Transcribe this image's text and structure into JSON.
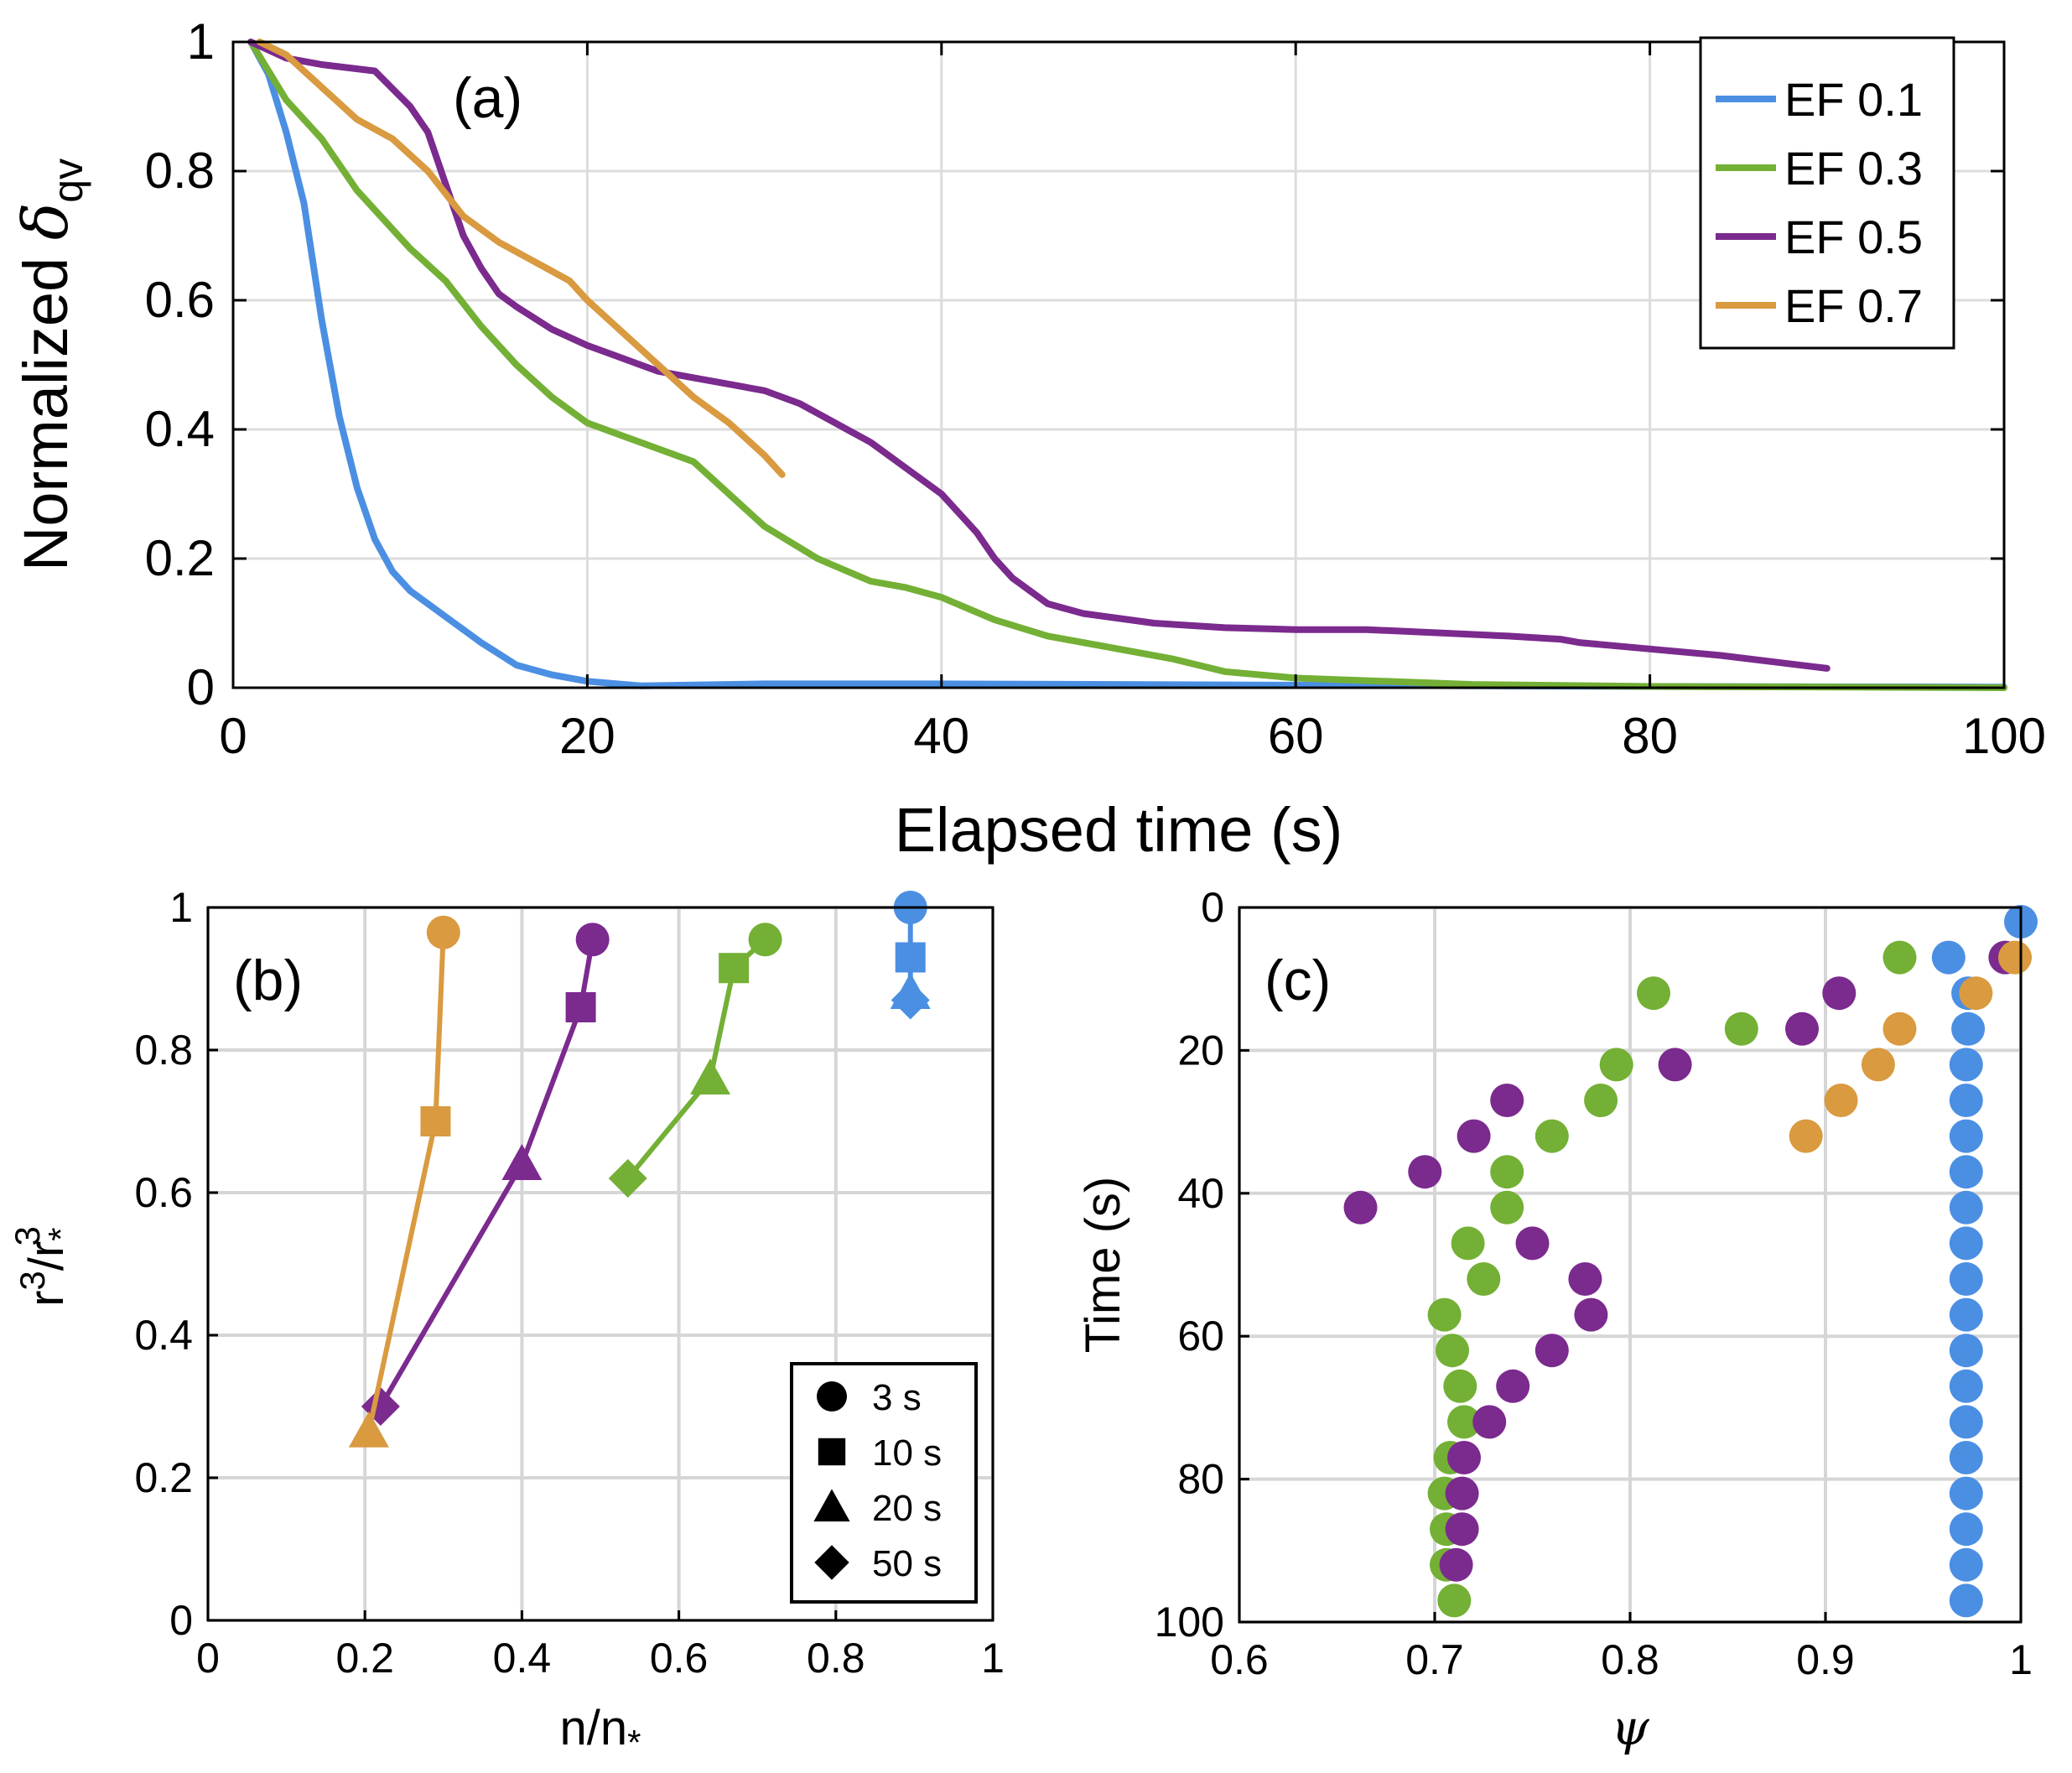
{
  "panels": {
    "a": {
      "tag": "(a)",
      "xlabel": "Elapsed time (s)",
      "ylabel_main": "Normalized ",
      "ylabel_symbol": "δ",
      "ylabel_sub": "qv",
      "xticks": [
        "0",
        "20",
        "40",
        "60",
        "80",
        "100"
      ],
      "yticks": [
        "0",
        "0.2",
        "0.4",
        "0.6",
        "0.8",
        "1"
      ]
    },
    "b": {
      "tag": "(b)",
      "xlabel_main": "n/n",
      "xlabel_sub": "*",
      "ylabel": "r³/r*³",
      "ylabel_r1": "r",
      "ylabel_sup1": "3",
      "ylabel_r2": "/r",
      "ylabel_sub2": "*",
      "ylabel_sup2": "3",
      "xticks": [
        "0",
        "0.2",
        "0.4",
        "0.6",
        "0.8",
        "1"
      ],
      "yticks": [
        "0",
        "0.2",
        "0.4",
        "0.6",
        "0.8",
        "1"
      ],
      "legend": [
        "3 s",
        "10 s",
        "20 s",
        "50 s"
      ]
    },
    "c": {
      "tag": "(c)",
      "xlabel": "ψ",
      "ylabel": "Time (s)",
      "xticks": [
        "0.6",
        "0.7",
        "0.8",
        "0.9",
        "1"
      ],
      "yticks": [
        "0",
        "20",
        "40",
        "60",
        "80",
        "100"
      ]
    }
  },
  "colors": {
    "EF 0.1": "#4b8fe3",
    "EF 0.3": "#73b035",
    "EF 0.5": "#7b2a8e",
    "EF 0.7": "#d99a40"
  },
  "chart_data": [
    {
      "type": "line",
      "panel": "a",
      "xlabel": "Elapsed time (s)",
      "ylabel": "Normalized δqv",
      "xlim": [
        0,
        100
      ],
      "ylim": [
        0,
        1
      ],
      "grid": true,
      "legend_position": "top-right",
      "series": [
        {
          "name": "EF 0.1",
          "x": [
            1,
            2,
            3,
            4,
            5,
            6,
            7,
            8,
            9,
            10,
            12,
            14,
            16,
            18,
            20,
            23,
            30,
            40,
            60,
            80,
            100
          ],
          "y": [
            1.0,
            0.95,
            0.86,
            0.75,
            0.57,
            0.42,
            0.31,
            0.23,
            0.18,
            0.15,
            0.11,
            0.07,
            0.035,
            0.02,
            0.01,
            0.003,
            0.006,
            0.006,
            0.004,
            0.002,
            0.001
          ]
        },
        {
          "name": "EF 0.3",
          "x": [
            1,
            3,
            5,
            7,
            10,
            12,
            14,
            16,
            18,
            20,
            22,
            26,
            28,
            30,
            33,
            36,
            38,
            40,
            43,
            46,
            50,
            53,
            56,
            60,
            70,
            80,
            100
          ],
          "y": [
            1.0,
            0.91,
            0.85,
            0.77,
            0.68,
            0.63,
            0.56,
            0.5,
            0.45,
            0.41,
            0.39,
            0.35,
            0.3,
            0.25,
            0.2,
            0.165,
            0.155,
            0.14,
            0.105,
            0.08,
            0.06,
            0.045,
            0.025,
            0.015,
            0.005,
            0.002,
            0.0
          ]
        },
        {
          "name": "EF 0.5",
          "x": [
            1,
            3,
            5,
            8,
            10,
            11,
            12,
            13,
            14,
            15,
            16,
            18,
            20,
            22,
            24,
            26,
            28,
            30,
            32,
            36,
            38,
            40,
            41,
            42,
            43,
            44,
            45,
            46,
            48,
            52,
            56,
            60,
            64,
            68,
            72,
            75,
            76,
            80,
            84,
            87,
            90
          ],
          "y": [
            1.0,
            0.975,
            0.965,
            0.955,
            0.9,
            0.86,
            0.78,
            0.7,
            0.65,
            0.61,
            0.59,
            0.555,
            0.53,
            0.51,
            0.49,
            0.48,
            0.47,
            0.46,
            0.44,
            0.38,
            0.34,
            0.3,
            0.27,
            0.24,
            0.2,
            0.17,
            0.15,
            0.13,
            0.115,
            0.1,
            0.093,
            0.09,
            0.09,
            0.085,
            0.08,
            0.075,
            0.07,
            0.06,
            0.05,
            0.04,
            0.03
          ]
        },
        {
          "name": "EF 0.7",
          "x": [
            1.5,
            3,
            5,
            7,
            9,
            11,
            13,
            15,
            17,
            18,
            19,
            20,
            22,
            24,
            26,
            28,
            30,
            31
          ],
          "y": [
            1.0,
            0.98,
            0.93,
            0.88,
            0.85,
            0.8,
            0.73,
            0.69,
            0.66,
            0.645,
            0.63,
            0.6,
            0.55,
            0.5,
            0.45,
            0.41,
            0.36,
            0.33
          ]
        }
      ]
    },
    {
      "type": "scatter",
      "panel": "b",
      "xlabel": "n/n*",
      "ylabel": "r³/r*³",
      "xlim": [
        0,
        1
      ],
      "ylim": [
        0,
        1
      ],
      "grid": true,
      "legend_position": "bottom-right",
      "marker_legend": [
        "3 s",
        "10 s",
        "20 s",
        "50 s"
      ],
      "series": [
        {
          "name": "EF 0.1",
          "points": [
            {
              "x": 0.895,
              "y": 1.0,
              "time": "3 s"
            },
            {
              "x": 0.895,
              "y": 0.93,
              "time": "10 s"
            },
            {
              "x": 0.895,
              "y": 0.88,
              "time": "20 s"
            },
            {
              "x": 0.895,
              "y": 0.87,
              "time": "50 s"
            }
          ]
        },
        {
          "name": "EF 0.3",
          "points": [
            {
              "x": 0.71,
              "y": 0.955,
              "time": "3 s"
            },
            {
              "x": 0.67,
              "y": 0.915,
              "time": "10 s"
            },
            {
              "x": 0.64,
              "y": 0.76,
              "time": "20 s"
            },
            {
              "x": 0.535,
              "y": 0.62,
              "time": "50 s"
            }
          ]
        },
        {
          "name": "EF 0.5",
          "points": [
            {
              "x": 0.49,
              "y": 0.955,
              "time": "3 s"
            },
            {
              "x": 0.475,
              "y": 0.86,
              "time": "10 s"
            },
            {
              "x": 0.4,
              "y": 0.64,
              "time": "20 s"
            },
            {
              "x": 0.22,
              "y": 0.3,
              "time": "50 s"
            }
          ]
        },
        {
          "name": "EF 0.7",
          "points": [
            {
              "x": 0.3,
              "y": 0.965,
              "time": "3 s"
            },
            {
              "x": 0.29,
              "y": 0.7,
              "time": "10 s"
            },
            {
              "x": 0.205,
              "y": 0.265,
              "time": "20 s"
            }
          ]
        }
      ]
    },
    {
      "type": "scatter",
      "panel": "c",
      "xlabel": "ψ",
      "ylabel": "Time (s)",
      "xlim": [
        0.6,
        1
      ],
      "ylim": [
        0,
        100
      ],
      "y_reversed": true,
      "grid": true,
      "series": [
        {
          "name": "EF 0.1",
          "x": [
            1.0,
            0.963,
            0.973,
            0.973,
            0.972,
            0.972,
            0.972,
            0.972,
            0.972,
            0.972,
            0.972,
            0.972,
            0.972,
            0.972,
            0.972,
            0.972,
            0.972,
            0.972,
            0.972,
            0.972
          ],
          "y": [
            2,
            7,
            12,
            17,
            22,
            27,
            32,
            37,
            42,
            47,
            52,
            57,
            62,
            67,
            72,
            77,
            82,
            87,
            92,
            97
          ]
        },
        {
          "name": "EF 0.3",
          "x": [
            0.938,
            0.812,
            0.857,
            0.793,
            0.785,
            0.76,
            0.737,
            0.737,
            0.717,
            0.725,
            0.705,
            0.709,
            0.713,
            0.715,
            0.708,
            0.705,
            0.706,
            0.706,
            0.71
          ],
          "y": [
            7,
            12,
            17,
            22,
            27,
            32,
            37,
            42,
            47,
            52,
            57,
            62,
            67,
            72,
            77,
            82,
            87,
            92,
            97
          ]
        },
        {
          "name": "EF 0.5",
          "x": [
            0.992,
            0.907,
            0.888,
            0.823,
            0.737,
            0.72,
            0.695,
            0.662,
            0.75,
            0.777,
            0.78,
            0.76,
            0.74,
            0.728,
            0.715,
            0.714,
            0.714,
            0.711
          ],
          "y": [
            7,
            12,
            17,
            22,
            27,
            32,
            37,
            42,
            47,
            52,
            57,
            62,
            67,
            72,
            77,
            82,
            87,
            92
          ]
        },
        {
          "name": "EF 0.7",
          "x": [
            0.997,
            0.977,
            0.938,
            0.927,
            0.908,
            0.89
          ],
          "y": [
            7,
            12,
            17,
            22,
            27,
            32
          ]
        }
      ]
    }
  ]
}
